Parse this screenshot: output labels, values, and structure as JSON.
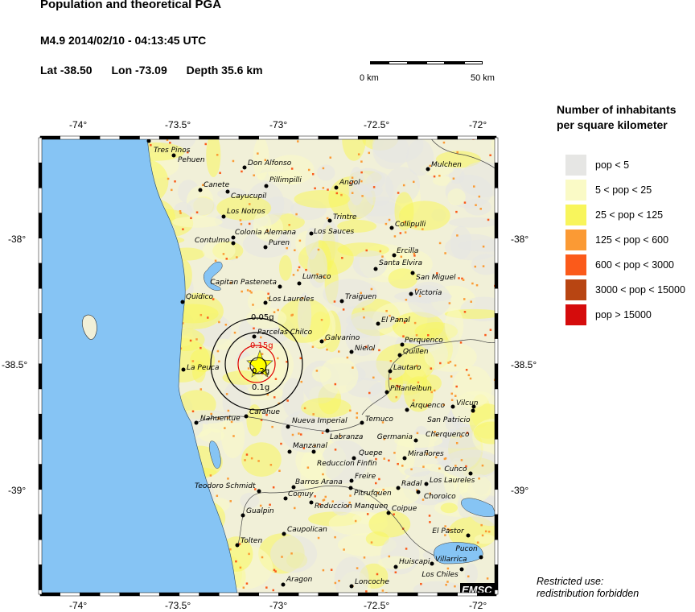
{
  "header": {
    "title": "Population and theoretical PGA",
    "event": "M4.9  2014/02/10 - 04:13:45 UTC",
    "lat": "Lat -38.50",
    "lon": "Lon -73.09",
    "depth": "Depth  35.6 km"
  },
  "scale_bar": {
    "start_label": "0 km",
    "end_label": "50 km"
  },
  "axes": {
    "lon_ticks": [
      "-74°",
      "-73.5°",
      "-73°",
      "-72.5°",
      "-72°"
    ],
    "lat_ticks": [
      "-38°",
      "-38.5°",
      "-39°"
    ]
  },
  "legend": {
    "title_line1": "Number of inhabitants",
    "title_line2": "per square kilometer",
    "items": [
      {
        "label": "pop < 5",
        "color": "#e6e6e4"
      },
      {
        "label": "5 < pop < 25",
        "color": "#fafac6"
      },
      {
        "label": "25 < pop < 125",
        "color": "#f8f55c"
      },
      {
        "label": "125 < pop < 600",
        "color": "#fb9a34"
      },
      {
        "label": "600 < pop < 3000",
        "color": "#fb5a1a"
      },
      {
        "label": "3000 < pop < 15000",
        "color": "#b84512"
      },
      {
        "label": "pop > 15000",
        "color": "#d50c0c"
      }
    ]
  },
  "pga_contours": [
    "0.05g",
    "0.1g",
    "0.15g",
    "0.2g"
  ],
  "epicenter_icon": "star-icon",
  "colors": {
    "ocean": "#86c4f4",
    "contour": "#000000",
    "contour_highlight": "#e00000",
    "epicenter": "#ffff00"
  },
  "towns": [
    "Tres Pinos",
    "Pehuen",
    "Don Alfonso",
    "Pillimpilli",
    "Canete",
    "Cayucupil",
    "Angol",
    "Mulchen",
    "Los Notros",
    "Trintre",
    "Los Sauces",
    "Colonia Alemana",
    "Contulmo",
    "Puren",
    "Collipulli",
    "Ercilla",
    "Santa Elvira",
    "San Miguel",
    "Lumaco",
    "Capitan Pasteneta",
    "Quidico",
    "Los Laureles",
    "Traiguen",
    "Victoria",
    "El Panal",
    "Parcelas Chilco",
    "Galvarino",
    "Nielol",
    "Perquenco",
    "Quillen",
    "Lautaro",
    "La Peuca",
    "Pillanlelbun",
    "Arquenco",
    "Vilcun",
    "San Patricio",
    "Cherquenco",
    "Carahue",
    "Nahuentue",
    "Nueva Imperial",
    "Labranza",
    "Temuco",
    "Germania",
    "Manzanal",
    "Reduccion Finfin",
    "Quepe",
    "Miraflores",
    "Cunco",
    "Freire",
    "Barros Arana",
    "Pitrufquen",
    "Teodoro Schmidt",
    "Comuy",
    "Reduccion Manquen",
    "Radal",
    "Los Laureles",
    "Choroico",
    "Coipue",
    "Gualpin",
    "Caupolican",
    "Tolten",
    "El Pastor",
    "Huiscapi",
    "Villarrica",
    "Pucon",
    "Los Chiles",
    "Aragon",
    "Loncoche"
  ],
  "watermark": "EMSC",
  "footer": {
    "line1": "Restricted use:",
    "line2": "redistribution forbidden"
  }
}
